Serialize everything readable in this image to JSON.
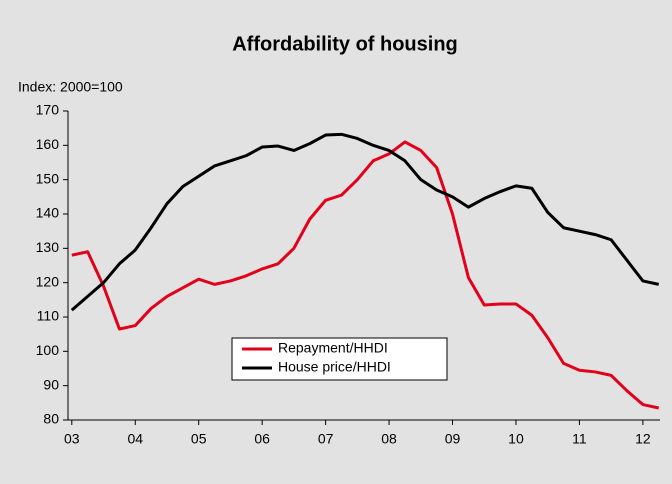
{
  "chart_data": {
    "type": "line",
    "title": "Affordability of housing",
    "y_axis_label": "Index: 2000=100",
    "xlim": [
      2002.94,
      2012.27
    ],
    "xticks": [
      {
        "value": 2003,
        "label": "03"
      },
      {
        "value": 2004,
        "label": "04"
      },
      {
        "value": 2005,
        "label": "05"
      },
      {
        "value": 2006,
        "label": "06"
      },
      {
        "value": 2007,
        "label": "07"
      },
      {
        "value": 2008,
        "label": "08"
      },
      {
        "value": 2009,
        "label": "09"
      },
      {
        "value": 2010,
        "label": "10"
      },
      {
        "value": 2011,
        "label": "11"
      },
      {
        "value": 2012,
        "label": "12"
      }
    ],
    "ylim": [
      80,
      170
    ],
    "yticks": [
      80,
      90,
      100,
      110,
      120,
      130,
      140,
      150,
      160,
      170
    ],
    "grid": false,
    "legend": "center",
    "x": [
      2003,
      2003.25,
      2003.5,
      2003.75,
      2004,
      2004.25,
      2004.5,
      2004.75,
      2005,
      2005.25,
      2005.5,
      2005.75,
      2006,
      2006.25,
      2006.5,
      2006.75,
      2007,
      2007.25,
      2007.5,
      2007.75,
      2008,
      2008.25,
      2008.5,
      2008.75,
      2009,
      2009.25,
      2009.5,
      2009.75,
      2010,
      2010.25,
      2010.5,
      2010.75,
      2011,
      2011.25,
      2011.5,
      2011.75,
      2012,
      2012.25
    ],
    "series": [
      {
        "name": "Repayment/HHDI",
        "color": "#e2001a",
        "values": [
          128,
          129,
          119,
          106.5,
          107.5,
          112.5,
          116,
          118.5,
          121,
          119.5,
          120.5,
          122,
          124,
          125.5,
          130,
          138.5,
          144,
          145.5,
          150,
          155.5,
          157.5,
          161,
          158.5,
          153.5,
          140,
          121.5,
          113.5,
          113.8,
          113.8,
          110.5,
          104,
          96.5,
          94.5,
          94,
          93,
          88.5,
          84.5,
          83.5
        ]
      },
      {
        "name": "House price/HHDI",
        "color": "#000000",
        "values": [
          112,
          116,
          120,
          125.5,
          129.5,
          136,
          143,
          148,
          151,
          154,
          155.5,
          157,
          159.5,
          159.8,
          158.5,
          160.5,
          163,
          163.2,
          162,
          160,
          158.5,
          155.5,
          150,
          147,
          145,
          142,
          144.5,
          146.5,
          148.2,
          147.5,
          140.5,
          136,
          135,
          134,
          132.5,
          126.5,
          120.5,
          119.5
        ]
      }
    ]
  }
}
